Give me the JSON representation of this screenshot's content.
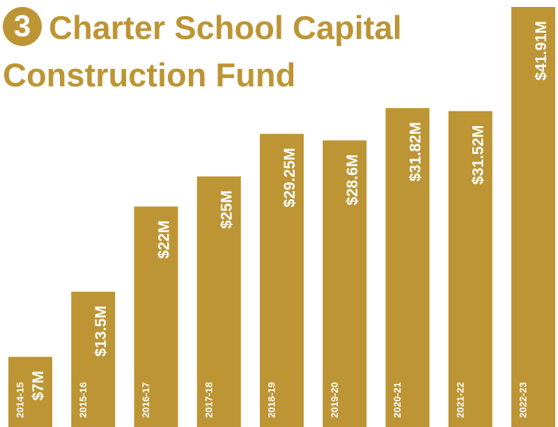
{
  "chart_data": {
    "type": "bar",
    "title_number": "3",
    "title": "Charter School Capital Construction Fund",
    "categories": [
      "2014-15",
      "2015-16",
      "2016-17",
      "2017-18",
      "2018-19",
      "2019-20",
      "2020-21",
      "2021-22",
      "2022-23"
    ],
    "values": [
      7,
      13.5,
      22,
      25,
      29.25,
      28.6,
      31.82,
      31.52,
      41.91
    ],
    "value_labels": [
      "$7M",
      "$13.5M",
      "$22M",
      "$25M",
      "$29.25M",
      "$28.6M",
      "$31.82M",
      "$31.52M",
      "$41.91M"
    ],
    "color": "#bd9535",
    "ylim": [
      0,
      41.91
    ]
  }
}
